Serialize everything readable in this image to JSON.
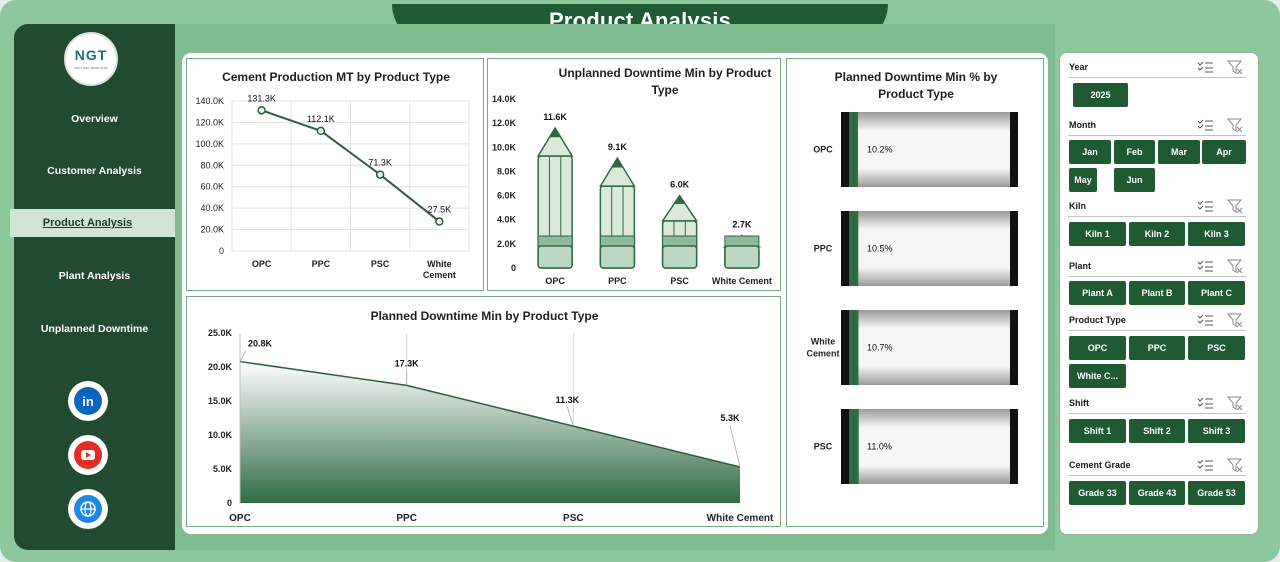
{
  "title": "Product Analysis",
  "logo": {
    "text": "NGT",
    "subtext": "NEXT GEN TEMPLATES"
  },
  "nav": [
    {
      "label": "Overview"
    },
    {
      "label": "Customer Analysis"
    },
    {
      "label": "Product Analysis",
      "active": true
    },
    {
      "label": "Plant Analysis"
    },
    {
      "label": "Unplanned Downtime"
    }
  ],
  "social": [
    "linkedin-icon",
    "youtube-icon",
    "globe-icon"
  ],
  "charts": {
    "production": {
      "title": "Cement Production MT by Product Type"
    },
    "unplanned": {
      "title_line1": "Unplanned Downtime Min by Product",
      "title_line2": "Type"
    },
    "planned_pct": {
      "title_line1": "Planned Downtime Min % by",
      "title_line2": "Product Type"
    },
    "planned": {
      "title": "Planned Downtime Min by Product Type"
    }
  },
  "chart_data": [
    {
      "type": "line",
      "title": "Cement Production MT by Product Type",
      "categories": [
        "OPC",
        "PPC",
        "PSC",
        "White Cement"
      ],
      "values": [
        131300,
        112100,
        71300,
        27500
      ],
      "labels": [
        "131.3K",
        "112.1K",
        "71.3K",
        "27.5K"
      ],
      "yticks": [
        "140.0K",
        "120.0K",
        "100.0K",
        "80.0K",
        "60.0K",
        "40.0K",
        "20.0K",
        "0"
      ],
      "ylim": [
        0,
        140000
      ],
      "grid": true
    },
    {
      "type": "bar",
      "title": "Unplanned Downtime Min by Product Type",
      "categories": [
        "OPC",
        "PPC",
        "PSC",
        "White Cement"
      ],
      "values": [
        11600,
        9100,
        6000,
        2700
      ],
      "labels": [
        "11.6K",
        "9.1K",
        "6.0K",
        "2.7K"
      ],
      "yticks": [
        "14.0K",
        "12.0K",
        "10.0K",
        "8.0K",
        "6.0K",
        "4.0K",
        "2.0K",
        "0"
      ],
      "ylim": [
        0,
        14000
      ]
    },
    {
      "type": "bar",
      "title": "Planned Downtime Min % by Product Type",
      "categories": [
        "OPC",
        "PPC",
        "White Cement",
        "PSC"
      ],
      "category_lines": [
        [
          "OPC"
        ],
        [
          "PPC"
        ],
        [
          "White",
          "Cement"
        ],
        [
          "PSC"
        ]
      ],
      "values": [
        10.2,
        10.5,
        10.7,
        11.0
      ],
      "labels": [
        "10.2%",
        "10.5%",
        "10.7%",
        "11.0%"
      ],
      "ylim": [
        0,
        100
      ]
    },
    {
      "type": "area",
      "title": "Planned Downtime Min by Product Type",
      "categories": [
        "OPC",
        "PPC",
        "PSC",
        "White Cement"
      ],
      "values": [
        20800,
        17300,
        11300,
        5300
      ],
      "labels": [
        "20.8K",
        "17.3K",
        "11.3K",
        "5.3K"
      ],
      "yticks": [
        "25.0K",
        "20.0K",
        "15.0K",
        "10.0K",
        "5.0K",
        "0"
      ],
      "ylim": [
        0,
        25000
      ]
    }
  ],
  "filters": [
    {
      "label": "Year",
      "options": [
        "2025"
      ]
    },
    {
      "label": "Month",
      "options": [
        "Jan",
        "Feb",
        "Mar",
        "Apr",
        "May",
        "Jun"
      ]
    },
    {
      "label": "Kiln",
      "options": [
        "Kiln 1",
        "Kiln 2",
        "Kiln 3"
      ]
    },
    {
      "label": "Plant",
      "options": [
        "Plant A",
        "Plant B",
        "Plant C"
      ]
    },
    {
      "label": "Product Type",
      "options": [
        "OPC",
        "PPC",
        "PSC",
        "White C..."
      ]
    },
    {
      "label": "Shift",
      "options": [
        "Shift 1",
        "Shift 2",
        "Shift 3"
      ]
    },
    {
      "label": "Cement Grade",
      "options": [
        "Grade 33",
        "Grade 43",
        "Grade 53"
      ]
    }
  ],
  "colors": {
    "dark_green": "#1f5a33",
    "sidebar": "#214a2f",
    "bg": "#8bc79b",
    "chart_green": "#2f6b43",
    "light_green": "#cfe6d5"
  }
}
